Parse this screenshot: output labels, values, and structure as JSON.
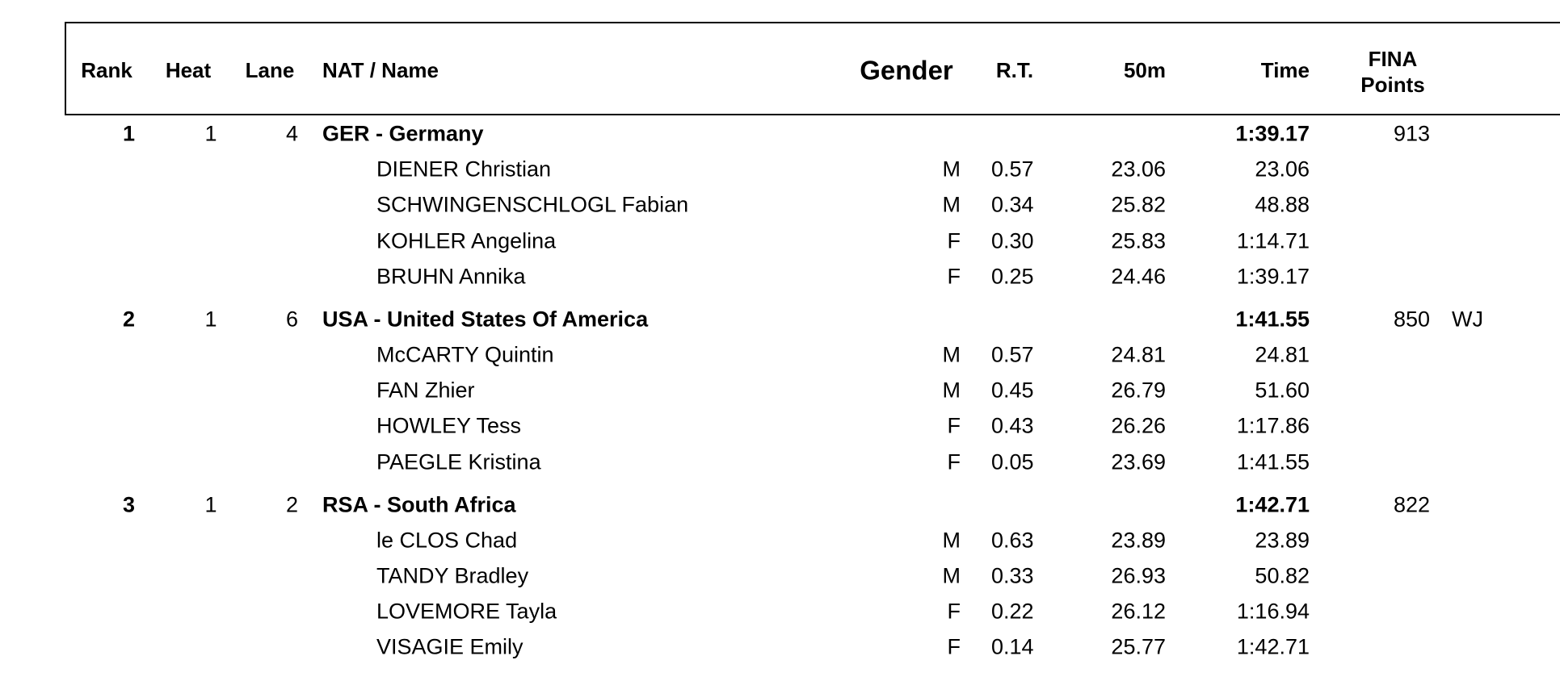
{
  "header": {
    "rank": "Rank",
    "heat": "Heat",
    "lane": "Lane",
    "name": "NAT / Name",
    "gender": "Gender",
    "rt": "R.T.",
    "split": "50m",
    "time": "Time",
    "points_line1": "FINA",
    "points_line2": "Points"
  },
  "teams": [
    {
      "rank": 1,
      "heat": 1,
      "lane": 4,
      "name": "GER - Germany",
      "time": "1:39.17",
      "points": 913,
      "swimmers": [
        {
          "name": "DIENER Christian",
          "gender": "M",
          "rt": "0.57",
          "split": "23.06",
          "time": "23.06"
        },
        {
          "name": "SCHWINGENSCHLOGL Fabian",
          "gender": "M",
          "rt": "0.34",
          "split": "25.82",
          "time": "48.88"
        },
        {
          "name": "KOHLER Angelina",
          "gender": "F",
          "rt": "0.30",
          "split": "25.83",
          "time": "1:14.71"
        },
        {
          "name": "BRUHN Annika",
          "gender": "F",
          "rt": "0.25",
          "split": "24.46",
          "time": "1:39.17"
        }
      ]
    },
    {
      "rank": 2,
      "heat": 1,
      "lane": 6,
      "name": "USA - United States Of America",
      "time": "1:41.55",
      "points": 850,
      "record": "WJ",
      "swimmers": [
        {
          "name": "McCARTY Quintin",
          "gender": "M",
          "rt": "0.57",
          "split": "24.81",
          "time": "24.81"
        },
        {
          "name": "FAN Zhier",
          "gender": "M",
          "rt": "0.45",
          "split": "26.79",
          "time": "51.60"
        },
        {
          "name": "HOWLEY Tess",
          "gender": "F",
          "rt": "0.43",
          "split": "26.26",
          "time": "1:17.86"
        },
        {
          "name": "PAEGLE Kristina",
          "gender": "F",
          "rt": "0.05",
          "split": "23.69",
          "time": "1:41.55"
        }
      ]
    },
    {
      "rank": 3,
      "heat": 1,
      "lane": 2,
      "name": "RSA - South Africa",
      "time": "1:42.71",
      "points": 822,
      "swimmers": [
        {
          "name": "le CLOS Chad",
          "gender": "M",
          "rt": "0.63",
          "split": "23.89",
          "time": "23.89"
        },
        {
          "name": "TANDY Bradley",
          "gender": "M",
          "rt": "0.33",
          "split": "26.93",
          "time": "50.82"
        },
        {
          "name": "LOVEMORE Tayla",
          "gender": "F",
          "rt": "0.22",
          "split": "26.12",
          "time": "1:16.94"
        },
        {
          "name": "VISAGIE Emily",
          "gender": "F",
          "rt": "0.14",
          "split": "25.77",
          "time": "1:42.71"
        }
      ]
    }
  ]
}
